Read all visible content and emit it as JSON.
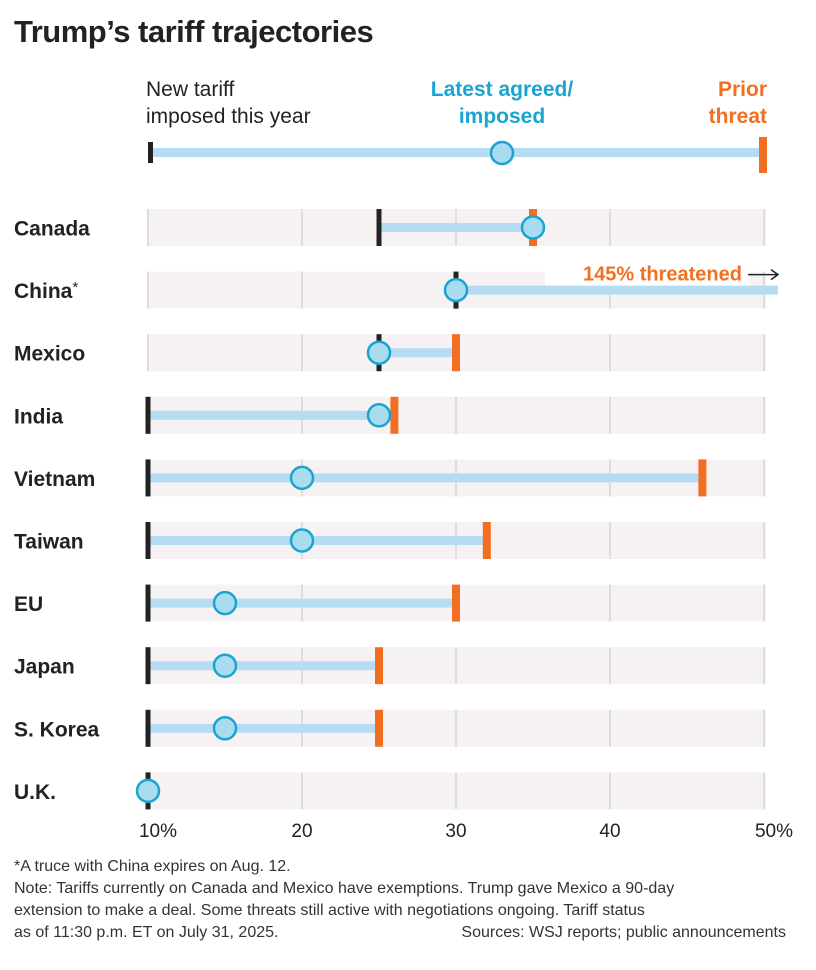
{
  "title": "Trump’s tariff trajectories",
  "legend": {
    "imposed": [
      "New tariff",
      "imposed this year"
    ],
    "latest": [
      "Latest agreed/",
      "imposed"
    ],
    "threat": [
      "Prior",
      "threat"
    ]
  },
  "colors": {
    "imposed": "#222222",
    "latest_fill": "#aadcef",
    "latest_stroke": "#1aa5d1",
    "line": "#b6dcf3",
    "threat": "#f26f21",
    "band": "#f6f2f4",
    "grid": "#dddddd"
  },
  "chart_data": {
    "type": "dumbbell",
    "title": "Trump’s tariff trajectories",
    "xlim": [
      10,
      50
    ],
    "xticks": [
      "10%",
      "20",
      "30",
      "40",
      "50%"
    ],
    "xtick_values": [
      10,
      20,
      30,
      40,
      50
    ],
    "rows": [
      {
        "country": "Canada",
        "imposed": 25,
        "latest": 35,
        "threat": 35
      },
      {
        "country": "China",
        "footnote_mark": "*",
        "imposed": 30,
        "latest": 30,
        "threat": 145,
        "threat_label": "145% threatened"
      },
      {
        "country": "Mexico",
        "imposed": 25,
        "latest": 25,
        "threat": 30
      },
      {
        "country": "India",
        "imposed": 10,
        "latest": 25,
        "threat": 26
      },
      {
        "country": "Vietnam",
        "imposed": 10,
        "latest": 20,
        "threat": 46
      },
      {
        "country": "Taiwan",
        "imposed": 10,
        "latest": 20,
        "threat": 32
      },
      {
        "country": "EU",
        "imposed": 10,
        "latest": 15,
        "threat": 30
      },
      {
        "country": "Japan",
        "imposed": 10,
        "latest": 15,
        "threat": 25
      },
      {
        "country": "S. Korea",
        "imposed": 10,
        "latest": 15,
        "threat": 25
      },
      {
        "country": "U.K.",
        "imposed": 10,
        "latest": 10,
        "threat": null
      }
    ]
  },
  "footnote": "*A truce with China expires on Aug. 12.",
  "note_lines": [
    "Note: Tariffs currently on Canada and Mexico have exemptions. Trump gave Mexico a 90-day",
    "extension to make a deal. Some threats still active with negotiations ongoing. Tariff status",
    "as of 11:30 p.m. ET on July 31, 2025."
  ],
  "sources": "Sources: WSJ reports; public announcements"
}
